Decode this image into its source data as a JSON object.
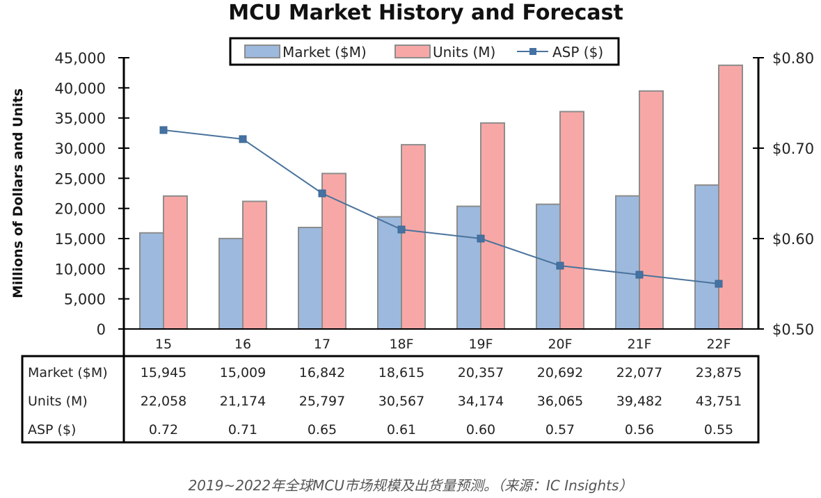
{
  "chart_data": {
    "type": "bar",
    "title": "MCU Market History and Forecast",
    "ylabel": "Millions of Dollars and Units",
    "ylim": [
      0,
      45000
    ],
    "y_ticks": [
      "0",
      "5,000",
      "10,000",
      "15,000",
      "20,000",
      "25,000",
      "30,000",
      "35,000",
      "40,000",
      "45,000"
    ],
    "y2lim": [
      0.5,
      0.8
    ],
    "y2_ticks": [
      "$0.50",
      "$0.60",
      "$0.70",
      "$0.80"
    ],
    "legend_position": "top-center",
    "grid": false,
    "categories": [
      "15",
      "16",
      "17",
      "18F",
      "19F",
      "20F",
      "21F",
      "22F"
    ],
    "series": [
      {
        "name": "Market ($M)",
        "type": "bar",
        "axis": "left",
        "color": "#9db9de",
        "values": [
          15945,
          15009,
          16842,
          18615,
          20357,
          20692,
          22077,
          23875
        ],
        "labels": [
          "15,945",
          "15,009",
          "16,842",
          "18,615",
          "20,357",
          "20,692",
          "22,077",
          "23,875"
        ]
      },
      {
        "name": "Units (M)",
        "type": "bar",
        "axis": "left",
        "color": "#f7a8a6",
        "values": [
          22058,
          21174,
          25797,
          30567,
          34174,
          36065,
          39482,
          43751
        ],
        "labels": [
          "22,058",
          "21,174",
          "25,797",
          "30,567",
          "34,174",
          "36,065",
          "39,482",
          "43,751"
        ]
      },
      {
        "name": "ASP ($)",
        "type": "line",
        "axis": "right",
        "color": "#4a739c",
        "values": [
          0.72,
          0.71,
          0.65,
          0.61,
          0.6,
          0.57,
          0.56,
          0.55
        ],
        "labels": [
          "0.72",
          "0.71",
          "0.65",
          "0.61",
          "0.60",
          "0.57",
          "0.56",
          "0.55"
        ]
      }
    ],
    "table_row_labels": [
      "Market ($M)",
      "Units (M)",
      "ASP ($)"
    ]
  },
  "caption": "2019~2022年全球MCU市场规模及出货量预测。（来源：IC Insights）"
}
